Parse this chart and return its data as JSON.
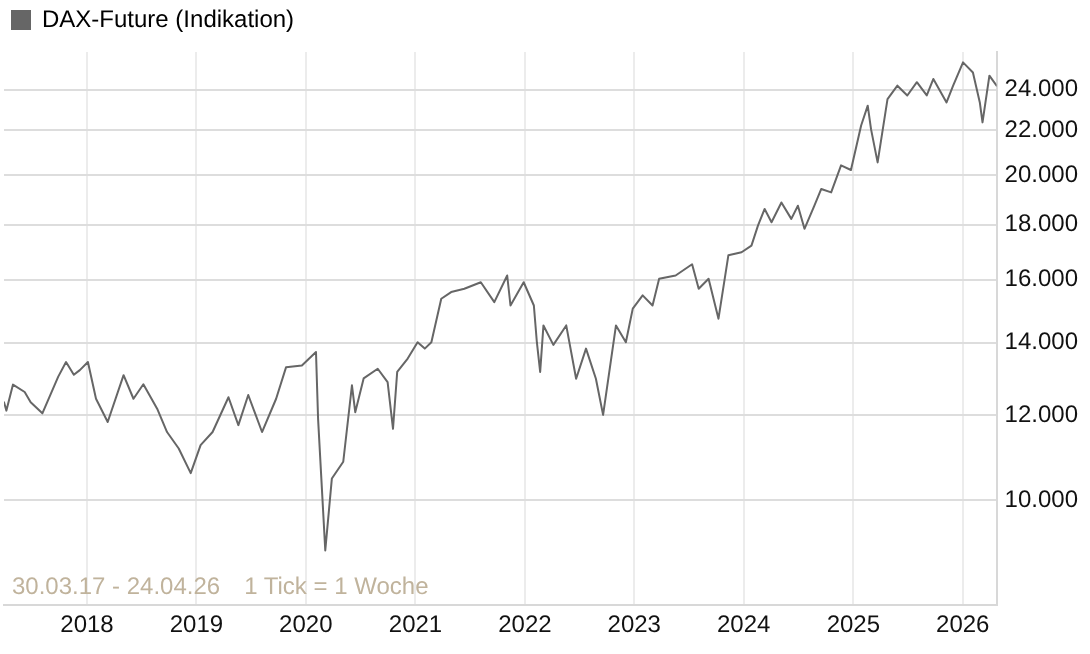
{
  "chart_data": {
    "type": "line",
    "legend": "top left",
    "grid": true,
    "log": "y",
    "marker": "none",
    "line_style": "solid",
    "xlim": [
      "2017-03-30",
      "2026-04-24"
    ],
    "xticks": [
      "2018",
      "2019",
      "2020",
      "2021",
      "2022",
      "2023",
      "2024",
      "2025",
      "2026"
    ],
    "ylim": [
      8000,
      26000
    ],
    "yticks": [
      {
        "value": 10000,
        "label": "10.000"
      },
      {
        "value": 12000,
        "label": "12.000"
      },
      {
        "value": 14000,
        "label": "14.000"
      },
      {
        "value": 16000,
        "label": "16.000"
      },
      {
        "value": 18000,
        "label": "18.000"
      },
      {
        "value": 20000,
        "label": "20.000"
      },
      {
        "value": 22000,
        "label": "22.000"
      },
      {
        "value": 24000,
        "label": "24.000"
      }
    ],
    "annotations": [
      "30.03.17 - 24.04.26",
      "1 Tick = 1 Woche"
    ],
    "x": [
      "2017-03-30",
      "2017-04-07",
      "2017-04-29",
      "2017-06-07",
      "2017-06-27",
      "2017-08-05",
      "2017-09-27",
      "2017-10-23",
      "2017-11-18",
      "2017-12-08",
      "2018-01-04",
      "2018-01-31",
      "2018-03-11",
      "2018-05-03",
      "2018-06-05",
      "2018-07-08",
      "2018-08-23",
      "2018-09-25",
      "2018-11-03",
      "2018-12-13",
      "2019-01-15",
      "2019-02-24",
      "2019-04-18",
      "2019-05-21",
      "2019-06-23",
      "2019-08-08",
      "2019-09-24",
      "2019-10-27",
      "2019-12-19",
      "2020-02-04",
      "2020-02-11",
      "2020-03-06",
      "2020-03-28",
      "2020-05-05",
      "2020-06-03",
      "2020-06-14",
      "2020-07-12",
      "2020-08-28",
      "2020-09-30",
      "2020-10-18",
      "2020-11-01",
      "2020-12-06",
      "2021-01-08",
      "2021-02-01",
      "2021-02-23",
      "2021-03-28",
      "2021-04-30",
      "2021-06-13",
      "2021-08-07",
      "2021-09-21",
      "2021-11-03",
      "2021-11-14",
      "2021-12-28",
      "2022-01-31",
      "2022-02-10",
      "2022-02-21",
      "2022-03-04",
      "2022-04-06",
      "2022-05-19",
      "2022-06-21",
      "2022-07-24",
      "2022-08-26",
      "2022-09-19",
      "2022-11-01",
      "2022-12-04",
      "2022-12-27",
      "2023-01-29",
      "2023-03-03",
      "2023-03-25",
      "2023-05-19",
      "2023-07-13",
      "2023-08-04",
      "2023-09-06",
      "2023-10-09",
      "2023-11-11",
      "2023-12-25",
      "2024-01-27",
      "2024-02-18",
      "2024-03-11",
      "2024-04-03",
      "2024-05-06",
      "2024-06-08",
      "2024-06-30",
      "2024-07-22",
      "2024-08-24",
      "2024-09-16",
      "2024-10-19",
      "2024-11-21",
      "2024-12-24",
      "2025-01-27",
      "2025-02-18",
      "2025-03-01",
      "2025-03-23",
      "2025-04-25",
      "2025-05-28",
      "2025-06-30",
      "2025-08-01",
      "2025-09-03",
      "2025-09-25",
      "2025-11-08",
      "2025-11-30",
      "2026-01-02",
      "2026-02-04",
      "2026-02-27",
      "2026-03-08",
      "2026-03-31",
      "2026-04-24"
    ],
    "series": [
      {
        "name": "DAX-Future (Indikation)",
        "color": "#666666",
        "values": [
          12330,
          12110,
          12800,
          12600,
          12330,
          12040,
          13020,
          13430,
          13070,
          13200,
          13430,
          12420,
          11820,
          13060,
          12420,
          12810,
          12160,
          11570,
          11170,
          10600,
          11250,
          11570,
          12460,
          11740,
          12520,
          11570,
          12420,
          13280,
          13330,
          13720,
          11900,
          8990,
          10480,
          10860,
          12780,
          12070,
          12970,
          13240,
          12870,
          11650,
          13150,
          13530,
          14010,
          13820,
          14010,
          15370,
          15590,
          15700,
          15920,
          15260,
          16150,
          15150,
          15920,
          15150,
          14010,
          13150,
          14520,
          13930,
          14520,
          12960,
          13820,
          12960,
          12000,
          14520,
          14010,
          15050,
          15480,
          15150,
          16040,
          16150,
          16540,
          15700,
          16040,
          14730,
          16860,
          16970,
          17210,
          17970,
          18610,
          18090,
          18870,
          18220,
          18740,
          17840,
          18740,
          19420,
          19280,
          20420,
          20220,
          22230,
          23190,
          22060,
          20550,
          23520,
          24200,
          23700,
          24380,
          23700,
          24550,
          23350,
          24200,
          25430,
          24890,
          23350,
          22380,
          24720,
          24200
        ]
      }
    ]
  }
}
